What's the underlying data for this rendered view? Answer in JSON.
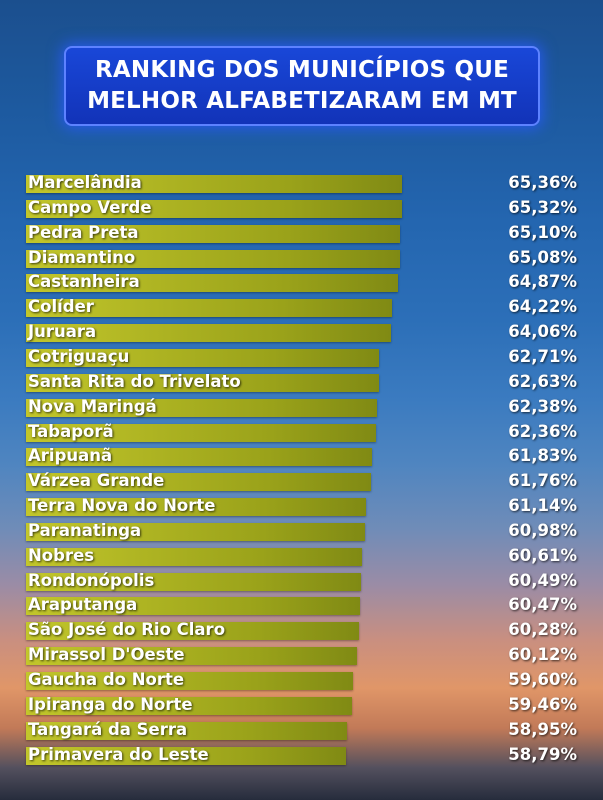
{
  "chart_data": {
    "type": "bar",
    "orientation": "horizontal",
    "title": "RANKING DOS MUNICÍPIOS QUE MELHOR ALFABETIZARAM EM MT",
    "title_lines": [
      "RANKING DOS MUNICÍPIOS QUE",
      "MELHOR ALFABETIZARAM EM MT"
    ],
    "bar_color": "#b8bd24",
    "xlim": [
      0,
      65.36
    ],
    "categories": [
      "Marcelândia",
      "Campo Verde",
      "Pedra Preta",
      "Diamantino",
      "Castanheira",
      "Colíder",
      "Juruara",
      "Cotriguaçu",
      "Santa Rita do Trivelato",
      "Nova Maringá",
      "Tabaporã",
      "Aripuanã",
      "Várzea Grande",
      "Terra Nova do Norte",
      "Paranatinga",
      "Nobres",
      "Rondonópolis",
      "Araputanga",
      "São José do Rio Claro",
      "Mirassol D'Oeste",
      "Gaucha do Norte",
      "Ipiranga do Norte",
      "Tangará da Serra",
      "Primavera do Leste"
    ],
    "values": [
      65.36,
      65.32,
      65.1,
      65.08,
      64.87,
      64.22,
      64.06,
      62.71,
      62.63,
      62.38,
      62.36,
      61.83,
      61.76,
      61.14,
      60.98,
      60.61,
      60.49,
      60.47,
      60.28,
      60.12,
      59.6,
      59.46,
      58.95,
      58.79
    ],
    "value_labels": [
      "65,36%",
      "65,32%",
      "65,10%",
      "65,08%",
      "64,87%",
      "64,22%",
      "64,06%",
      "62,71%",
      "62,63%",
      "62,38%",
      "62,36%",
      "61,83%",
      "61,76%",
      "61,14%",
      "60,98%",
      "60,61%",
      "60,49%",
      "60,47%",
      "60,28%",
      "60,12%",
      "59,60%",
      "59,46%",
      "58,95%",
      "58,79%"
    ]
  }
}
